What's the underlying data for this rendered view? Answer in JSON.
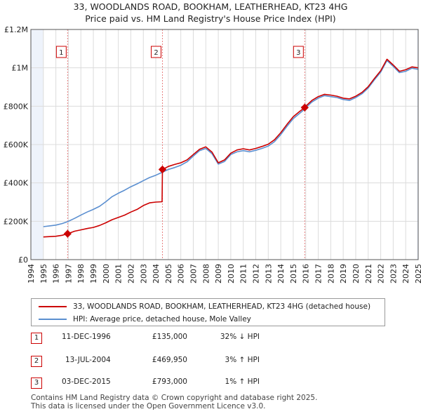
{
  "title": {
    "line1": "33, WOODLANDS ROAD, BOOKHAM, LEATHERHEAD, KT23 4HG",
    "line2": "Price paid vs. HM Land Registry's House Price Index (HPI)"
  },
  "colors": {
    "property": "#cc0000",
    "hpi": "#5b8fd0",
    "marker_fill": "#cc0000",
    "vline": "#e88080",
    "grid": "#dcdcdc",
    "shade": "#eef3fb"
  },
  "legend": {
    "property_label": "33, WOODLANDS ROAD, BOOKHAM, LEATHERHEAD, KT23 4HG (detached house)",
    "hpi_label": "HPI: Average price, detached house, Mole Valley"
  },
  "sales": [
    {
      "num": "1",
      "date": "11-DEC-1996",
      "price": "£135,000",
      "hpi": "32% ↓ HPI"
    },
    {
      "num": "2",
      "date": "13-JUL-2004",
      "price": "£469,950",
      "hpi": "3% ↑ HPI"
    },
    {
      "num": "3",
      "date": "03-DEC-2015",
      "price": "£793,000",
      "hpi": "1% ↑ HPI"
    }
  ],
  "footer": {
    "line1": "Contains HM Land Registry data © Crown copyright and database right 2025.",
    "line2": "This data is licensed under the Open Government Licence v3.0."
  },
  "chart_data": {
    "type": "line",
    "title": "33, WOODLANDS ROAD, BOOKHAM, LEATHERHEAD, KT23 4HG",
    "subtitle": "Price paid vs. HM Land Registry's House Price Index (HPI)",
    "xlabel": "",
    "ylabel": "",
    "xlim": [
      1994,
      2025
    ],
    "ylim": [
      0,
      1200000
    ],
    "y_ticks": [
      {
        "value": 0,
        "label": "£0"
      },
      {
        "value": 200000,
        "label": "£200K"
      },
      {
        "value": 400000,
        "label": "£400K"
      },
      {
        "value": 600000,
        "label": "£600K"
      },
      {
        "value": 800000,
        "label": "£800K"
      },
      {
        "value": 1000000,
        "label": "£1M"
      },
      {
        "value": 1200000,
        "label": "£1.2M"
      }
    ],
    "x_ticks": [
      "1994",
      "1995",
      "1996",
      "1997",
      "1998",
      "1999",
      "2000",
      "2001",
      "2002",
      "2003",
      "2004",
      "2005",
      "2006",
      "2007",
      "2008",
      "2009",
      "2010",
      "2011",
      "2012",
      "2013",
      "2014",
      "2015",
      "2016",
      "2017",
      "2018",
      "2019",
      "2020",
      "2021",
      "2022",
      "2023",
      "2024",
      "2025"
    ],
    "grid": true,
    "series": [
      {
        "name": "33, WOODLANDS ROAD, BOOKHAM, LEATHERHEAD, KT23 4HG (detached house)",
        "x": [
          1995.0,
          1995.5,
          1996.0,
          1996.5,
          1996.94,
          1997.5,
          1998.0,
          1998.5,
          1999.0,
          1999.5,
          2000.0,
          2000.5,
          2001.0,
          2001.5,
          2002.0,
          2002.5,
          2003.0,
          2003.5,
          2004.0,
          2004.5,
          2004.53,
          2004.6,
          2005.0,
          2005.5,
          2006.0,
          2006.5,
          2007.0,
          2007.5,
          2008.0,
          2008.5,
          2009.0,
          2009.5,
          2010.0,
          2010.5,
          2011.0,
          2011.5,
          2012.0,
          2012.5,
          2013.0,
          2013.5,
          2014.0,
          2014.5,
          2015.0,
          2015.5,
          2015.92,
          2016.0,
          2016.5,
          2017.0,
          2017.5,
          2018.0,
          2018.5,
          2019.0,
          2019.5,
          2020.0,
          2020.5,
          2021.0,
          2021.5,
          2022.0,
          2022.5,
          2023.0,
          2023.5,
          2024.0,
          2024.5,
          2025.0
        ],
        "values": [
          118000,
          120000,
          122000,
          127000,
          135000,
          148000,
          155000,
          162000,
          168000,
          178000,
          192000,
          208000,
          220000,
          232000,
          248000,
          262000,
          282000,
          296000,
          300000,
          302000,
          469950,
          472000,
          486000,
          496000,
          505000,
          520000,
          548000,
          575000,
          588000,
          560000,
          505000,
          520000,
          555000,
          572000,
          578000,
          572000,
          580000,
          590000,
          602000,
          625000,
          662000,
          705000,
          745000,
          772000,
          793000,
          800000,
          830000,
          850000,
          862000,
          858000,
          852000,
          842000,
          838000,
          852000,
          872000,
          902000,
          945000,
          985000,
          1045000,
          1015000,
          982000,
          990000,
          1005000,
          1000000
        ]
      },
      {
        "name": "HPI: Average price, detached house, Mole Valley",
        "x": [
          1995.0,
          1995.5,
          1996.0,
          1996.5,
          1996.94,
          1997.5,
          1998.0,
          1998.5,
          1999.0,
          1999.5,
          2000.0,
          2000.5,
          2001.0,
          2001.5,
          2002.0,
          2002.5,
          2003.0,
          2003.5,
          2004.0,
          2004.5,
          2005.0,
          2005.5,
          2006.0,
          2006.5,
          2007.0,
          2007.5,
          2008.0,
          2008.5,
          2009.0,
          2009.5,
          2010.0,
          2010.5,
          2011.0,
          2011.5,
          2012.0,
          2012.5,
          2013.0,
          2013.5,
          2014.0,
          2014.5,
          2015.0,
          2015.5,
          2015.92,
          2016.0,
          2016.5,
          2017.0,
          2017.5,
          2018.0,
          2018.5,
          2019.0,
          2019.5,
          2020.0,
          2020.5,
          2021.0,
          2021.5,
          2022.0,
          2022.5,
          2023.0,
          2023.5,
          2024.0,
          2024.5,
          2025.0
        ],
        "values": [
          172000,
          176000,
          180000,
          188000,
          198000,
          215000,
          232000,
          248000,
          262000,
          278000,
          302000,
          328000,
          346000,
          362000,
          380000,
          395000,
          412000,
          428000,
          440000,
          455000,
          470000,
          480000,
          492000,
          510000,
          540000,
          568000,
          580000,
          552000,
          498000,
          512000,
          548000,
          562000,
          568000,
          562000,
          570000,
          580000,
          592000,
          615000,
          652000,
          695000,
          735000,
          762000,
          785000,
          792000,
          822000,
          842000,
          855000,
          850000,
          845000,
          835000,
          830000,
          845000,
          865000,
          895000,
          938000,
          978000,
          1038000,
          1008000,
          975000,
          982000,
          998000,
          992000
        ]
      }
    ],
    "annotations": [
      {
        "label": "1",
        "x": 1996.94,
        "value": 135000
      },
      {
        "label": "2",
        "x": 2004.53,
        "value": 469950
      },
      {
        "label": "3",
        "x": 2015.92,
        "value": 793000
      }
    ]
  }
}
